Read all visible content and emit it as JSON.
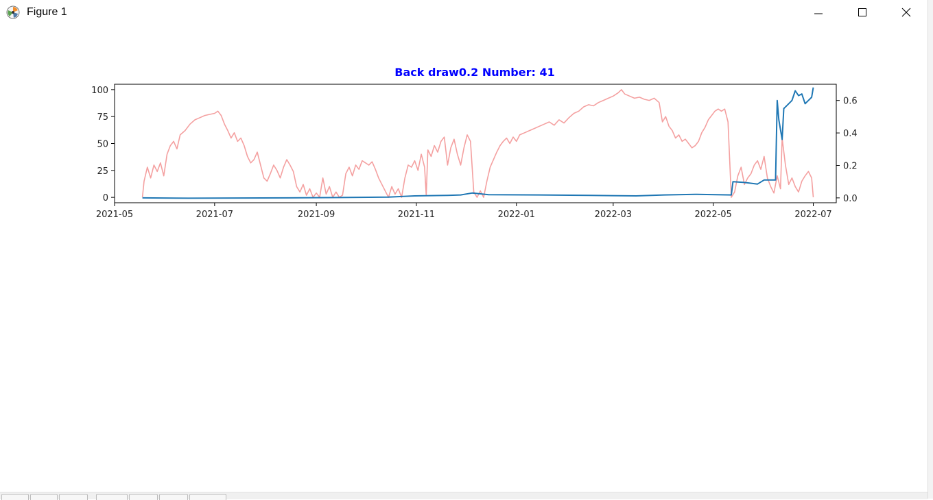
{
  "window": {
    "title": "Figure 1",
    "icon": "matplotlib-icon",
    "controls": [
      "minimize-icon",
      "maximize-icon",
      "close-icon"
    ]
  },
  "toolbar": {
    "buttons": [
      "home-icon",
      "back-icon",
      "forward-icon",
      "pan-icon",
      "zoom-icon",
      "subplots-icon",
      "save-icon"
    ]
  },
  "chart_data": {
    "type": "line",
    "title": "Back draw0.2 Number: 41",
    "title_color": "#0000ff",
    "xlabel": "",
    "ylabel": "",
    "grid": false,
    "legend": "none",
    "x_axis": {
      "type": "date",
      "range": [
        "2021-05-01",
        "2022-07-15"
      ],
      "tick_labels": [
        "2021-05",
        "2021-07",
        "2021-09",
        "2021-11",
        "2022-01",
        "2022-03",
        "2022-05",
        "2022-07"
      ],
      "ticks": [
        "2021-05-01",
        "2021-07-01",
        "2021-09-01",
        "2021-11-01",
        "2022-01-01",
        "2022-03-01",
        "2022-05-01",
        "2022-07-01"
      ]
    },
    "y_axis_left": {
      "range": [
        -5,
        105
      ],
      "ticks": [
        0,
        25,
        50,
        75,
        100
      ],
      "tick_labels": [
        "0",
        "25",
        "50",
        "75",
        "100"
      ]
    },
    "y_axis_right": {
      "range": [
        -0.03,
        0.7
      ],
      "ticks": [
        0.0,
        0.2,
        0.4,
        0.6
      ],
      "tick_labels": [
        "0.0",
        "0.2",
        "0.4",
        "0.6"
      ]
    },
    "series": [
      {
        "axis": "left",
        "color": "#f08080",
        "opacity": 0.75,
        "points": [
          [
            "2021-05-18",
            0
          ],
          [
            "2021-05-19",
            15
          ],
          [
            "2021-05-21",
            28
          ],
          [
            "2021-05-23",
            18
          ],
          [
            "2021-05-25",
            30
          ],
          [
            "2021-05-27",
            24
          ],
          [
            "2021-05-29",
            32
          ],
          [
            "2021-05-31",
            20
          ],
          [
            "2021-06-02",
            40
          ],
          [
            "2021-06-04",
            48
          ],
          [
            "2021-06-06",
            52
          ],
          [
            "2021-06-08",
            45
          ],
          [
            "2021-06-10",
            58
          ],
          [
            "2021-06-13",
            62
          ],
          [
            "2021-06-16",
            68
          ],
          [
            "2021-06-19",
            72
          ],
          [
            "2021-06-22",
            74
          ],
          [
            "2021-06-25",
            76
          ],
          [
            "2021-06-28",
            77
          ],
          [
            "2021-07-01",
            78
          ],
          [
            "2021-07-03",
            80
          ],
          [
            "2021-07-05",
            76
          ],
          [
            "2021-07-07",
            68
          ],
          [
            "2021-07-09",
            62
          ],
          [
            "2021-07-11",
            55
          ],
          [
            "2021-07-13",
            60
          ],
          [
            "2021-07-15",
            52
          ],
          [
            "2021-07-17",
            55
          ],
          [
            "2021-07-19",
            48
          ],
          [
            "2021-07-21",
            38
          ],
          [
            "2021-07-23",
            32
          ],
          [
            "2021-07-25",
            35
          ],
          [
            "2021-07-27",
            42
          ],
          [
            "2021-07-29",
            30
          ],
          [
            "2021-07-31",
            18
          ],
          [
            "2021-08-02",
            15
          ],
          [
            "2021-08-04",
            22
          ],
          [
            "2021-08-06",
            30
          ],
          [
            "2021-08-08",
            25
          ],
          [
            "2021-08-10",
            18
          ],
          [
            "2021-08-12",
            28
          ],
          [
            "2021-08-14",
            35
          ],
          [
            "2021-08-16",
            30
          ],
          [
            "2021-08-18",
            24
          ],
          [
            "2021-08-20",
            10
          ],
          [
            "2021-08-22",
            5
          ],
          [
            "2021-08-24",
            12
          ],
          [
            "2021-08-26",
            2
          ],
          [
            "2021-08-28",
            8
          ],
          [
            "2021-08-30",
            0
          ],
          [
            "2021-09-01",
            4
          ],
          [
            "2021-09-03",
            0
          ],
          [
            "2021-09-05",
            18
          ],
          [
            "2021-09-07",
            3
          ],
          [
            "2021-09-09",
            10
          ],
          [
            "2021-09-11",
            0
          ],
          [
            "2021-09-13",
            5
          ],
          [
            "2021-09-15",
            0
          ],
          [
            "2021-09-17",
            2
          ],
          [
            "2021-09-19",
            22
          ],
          [
            "2021-09-21",
            28
          ],
          [
            "2021-09-23",
            20
          ],
          [
            "2021-09-25",
            30
          ],
          [
            "2021-09-27",
            26
          ],
          [
            "2021-09-29",
            34
          ],
          [
            "2021-10-01",
            32
          ],
          [
            "2021-10-03",
            30
          ],
          [
            "2021-10-05",
            33
          ],
          [
            "2021-10-07",
            26
          ],
          [
            "2021-10-09",
            18
          ],
          [
            "2021-10-11",
            12
          ],
          [
            "2021-10-13",
            6
          ],
          [
            "2021-10-15",
            0
          ],
          [
            "2021-10-17",
            10
          ],
          [
            "2021-10-19",
            3
          ],
          [
            "2021-10-21",
            8
          ],
          [
            "2021-10-23",
            0
          ],
          [
            "2021-10-25",
            18
          ],
          [
            "2021-10-27",
            30
          ],
          [
            "2021-10-29",
            28
          ],
          [
            "2021-10-31",
            34
          ],
          [
            "2021-11-02",
            25
          ],
          [
            "2021-11-04",
            40
          ],
          [
            "2021-11-06",
            28
          ],
          [
            "2021-11-07",
            2
          ],
          [
            "2021-11-08",
            44
          ],
          [
            "2021-11-10",
            38
          ],
          [
            "2021-11-12",
            48
          ],
          [
            "2021-11-14",
            42
          ],
          [
            "2021-11-16",
            52
          ],
          [
            "2021-11-18",
            56
          ],
          [
            "2021-11-20",
            30
          ],
          [
            "2021-11-22",
            46
          ],
          [
            "2021-11-24",
            54
          ],
          [
            "2021-11-26",
            40
          ],
          [
            "2021-11-28",
            30
          ],
          [
            "2021-11-30",
            46
          ],
          [
            "2021-12-02",
            58
          ],
          [
            "2021-12-04",
            52
          ],
          [
            "2021-12-06",
            5
          ],
          [
            "2021-12-08",
            0
          ],
          [
            "2021-12-10",
            6
          ],
          [
            "2021-12-12",
            0
          ],
          [
            "2021-12-14",
            15
          ],
          [
            "2021-12-16",
            28
          ],
          [
            "2021-12-18",
            35
          ],
          [
            "2021-12-20",
            42
          ],
          [
            "2021-12-22",
            48
          ],
          [
            "2021-12-24",
            52
          ],
          [
            "2021-12-26",
            55
          ],
          [
            "2021-12-28",
            50
          ],
          [
            "2021-12-30",
            56
          ],
          [
            "2022-01-01",
            52
          ],
          [
            "2022-01-03",
            58
          ],
          [
            "2022-01-06",
            60
          ],
          [
            "2022-01-09",
            62
          ],
          [
            "2022-01-12",
            64
          ],
          [
            "2022-01-15",
            66
          ],
          [
            "2022-01-18",
            68
          ],
          [
            "2022-01-21",
            70
          ],
          [
            "2022-01-24",
            67
          ],
          [
            "2022-01-27",
            72
          ],
          [
            "2022-01-30",
            69
          ],
          [
            "2022-02-02",
            74
          ],
          [
            "2022-02-05",
            78
          ],
          [
            "2022-02-08",
            80
          ],
          [
            "2022-02-11",
            84
          ],
          [
            "2022-02-14",
            86
          ],
          [
            "2022-02-17",
            85
          ],
          [
            "2022-02-20",
            88
          ],
          [
            "2022-02-23",
            90
          ],
          [
            "2022-02-26",
            92
          ],
          [
            "2022-03-01",
            94
          ],
          [
            "2022-03-04",
            97
          ],
          [
            "2022-03-06",
            100
          ],
          [
            "2022-03-08",
            96
          ],
          [
            "2022-03-11",
            94
          ],
          [
            "2022-03-14",
            92
          ],
          [
            "2022-03-17",
            93
          ],
          [
            "2022-03-20",
            91
          ],
          [
            "2022-03-23",
            90
          ],
          [
            "2022-03-26",
            92
          ],
          [
            "2022-03-29",
            88
          ],
          [
            "2022-03-31",
            70
          ],
          [
            "2022-04-02",
            75
          ],
          [
            "2022-04-04",
            66
          ],
          [
            "2022-04-06",
            62
          ],
          [
            "2022-04-08",
            55
          ],
          [
            "2022-04-10",
            58
          ],
          [
            "2022-04-12",
            52
          ],
          [
            "2022-04-14",
            54
          ],
          [
            "2022-04-16",
            50
          ],
          [
            "2022-04-18",
            46
          ],
          [
            "2022-04-20",
            48
          ],
          [
            "2022-04-22",
            52
          ],
          [
            "2022-04-24",
            60
          ],
          [
            "2022-04-26",
            65
          ],
          [
            "2022-04-28",
            72
          ],
          [
            "2022-04-30",
            76
          ],
          [
            "2022-05-02",
            80
          ],
          [
            "2022-05-04",
            82
          ],
          [
            "2022-05-06",
            80
          ],
          [
            "2022-05-08",
            82
          ],
          [
            "2022-05-10",
            70
          ],
          [
            "2022-05-12",
            0
          ],
          [
            "2022-05-14",
            5
          ],
          [
            "2022-05-16",
            20
          ],
          [
            "2022-05-18",
            28
          ],
          [
            "2022-05-20",
            12
          ],
          [
            "2022-05-22",
            18
          ],
          [
            "2022-05-24",
            22
          ],
          [
            "2022-05-26",
            30
          ],
          [
            "2022-05-28",
            34
          ],
          [
            "2022-05-30",
            26
          ],
          [
            "2022-06-01",
            38
          ],
          [
            "2022-06-03",
            18
          ],
          [
            "2022-06-05",
            10
          ],
          [
            "2022-06-07",
            4
          ],
          [
            "2022-06-09",
            20
          ],
          [
            "2022-06-11",
            8
          ],
          [
            "2022-06-12",
            55
          ],
          [
            "2022-06-14",
            30
          ],
          [
            "2022-06-16",
            12
          ],
          [
            "2022-06-18",
            18
          ],
          [
            "2022-06-20",
            10
          ],
          [
            "2022-06-22",
            5
          ],
          [
            "2022-06-24",
            15
          ],
          [
            "2022-06-26",
            20
          ],
          [
            "2022-06-28",
            24
          ],
          [
            "2022-06-30",
            18
          ],
          [
            "2022-07-01",
            0
          ]
        ]
      },
      {
        "axis": "right",
        "color": "#1f77b4",
        "opacity": 1,
        "points": [
          [
            "2021-05-18",
            0.0
          ],
          [
            "2021-06-15",
            -0.002
          ],
          [
            "2021-07-15",
            -0.001
          ],
          [
            "2021-08-15",
            0.0
          ],
          [
            "2021-09-15",
            0.002
          ],
          [
            "2021-10-15",
            0.005
          ],
          [
            "2021-10-31",
            0.012
          ],
          [
            "2021-11-20",
            0.015
          ],
          [
            "2021-11-28",
            0.018
          ],
          [
            "2021-12-05",
            0.03
          ],
          [
            "2021-12-15",
            0.02
          ],
          [
            "2022-01-15",
            0.018
          ],
          [
            "2022-02-15",
            0.015
          ],
          [
            "2022-03-15",
            0.012
          ],
          [
            "2022-04-01",
            0.018
          ],
          [
            "2022-04-20",
            0.022
          ],
          [
            "2022-05-12",
            0.018
          ],
          [
            "2022-05-13",
            0.1
          ],
          [
            "2022-05-20",
            0.095
          ],
          [
            "2022-05-28",
            0.085
          ],
          [
            "2022-06-01",
            0.11
          ],
          [
            "2022-06-08",
            0.11
          ],
          [
            "2022-06-09",
            0.6
          ],
          [
            "2022-06-10",
            0.48
          ],
          [
            "2022-06-12",
            0.36
          ],
          [
            "2022-06-13",
            0.55
          ],
          [
            "2022-06-15",
            0.57
          ],
          [
            "2022-06-18",
            0.6
          ],
          [
            "2022-06-20",
            0.66
          ],
          [
            "2022-06-22",
            0.63
          ],
          [
            "2022-06-24",
            0.64
          ],
          [
            "2022-06-26",
            0.58
          ],
          [
            "2022-06-28",
            0.6
          ],
          [
            "2022-06-30",
            0.62
          ],
          [
            "2022-07-01",
            0.68
          ]
        ]
      }
    ]
  }
}
